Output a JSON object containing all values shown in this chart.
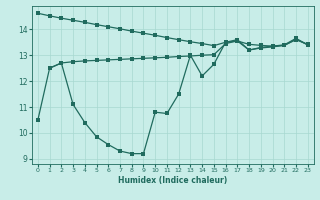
{
  "xlabel": "Humidex (Indice chaleur)",
  "bg_color": "#c8ede8",
  "line_color": "#206b5e",
  "grid_color": "#a8d8d0",
  "xlim": [
    -0.5,
    23.5
  ],
  "ylim": [
    8.8,
    14.9
  ],
  "xticks": [
    0,
    1,
    2,
    3,
    4,
    5,
    6,
    7,
    8,
    9,
    10,
    11,
    12,
    13,
    14,
    15,
    16,
    17,
    18,
    19,
    20,
    21,
    22,
    23
  ],
  "yticks": [
    9,
    10,
    11,
    12,
    13,
    14
  ],
  "line1_x": [
    0,
    1,
    2,
    3,
    4,
    5,
    6,
    7,
    8,
    9,
    10,
    11,
    12,
    13,
    14,
    15,
    16,
    17,
    18,
    19,
    20,
    21,
    22,
    23
  ],
  "line1_y": [
    14.62,
    14.52,
    14.43,
    14.35,
    14.27,
    14.18,
    14.1,
    14.02,
    13.93,
    13.85,
    13.77,
    13.68,
    13.6,
    13.52,
    13.45,
    13.37,
    13.5,
    13.55,
    13.42,
    13.38,
    13.35,
    13.38,
    13.6,
    13.42
  ],
  "line2_x": [
    0,
    1,
    2,
    3,
    4,
    5,
    6,
    7,
    8,
    9,
    10,
    11,
    12,
    13,
    14,
    15,
    16,
    17,
    18,
    19,
    20,
    21,
    22,
    23
  ],
  "line2_y": [
    10.5,
    12.5,
    12.7,
    11.1,
    10.4,
    9.85,
    9.55,
    9.3,
    9.2,
    9.2,
    10.8,
    10.75,
    11.5,
    13.0,
    12.2,
    12.65,
    13.5,
    13.6,
    13.2,
    13.3,
    13.35,
    13.4,
    13.65,
    13.4
  ],
  "line3_x": [
    1,
    2,
    3,
    4,
    5,
    6,
    7,
    8,
    9,
    10,
    11,
    12,
    13,
    14,
    15,
    16,
    17,
    18,
    19,
    20,
    21,
    22,
    23
  ],
  "line3_y": [
    12.5,
    12.7,
    12.75,
    12.78,
    12.8,
    12.82,
    12.84,
    12.86,
    12.88,
    12.9,
    12.92,
    12.95,
    12.97,
    13.0,
    13.02,
    13.45,
    13.55,
    13.2,
    13.28,
    13.32,
    13.38,
    13.62,
    13.4
  ]
}
